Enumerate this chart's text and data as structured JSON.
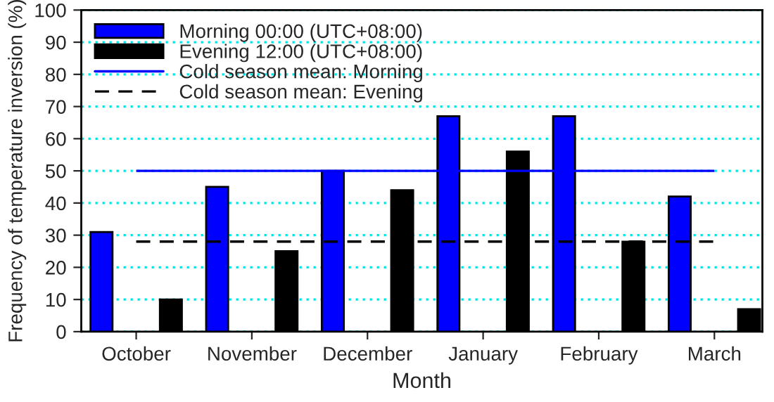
{
  "chart_data": {
    "type": "bar",
    "xlabel": "Month",
    "ylabel": "Frequency of temperature inversion (%)",
    "categories": [
      "October",
      "November",
      "December",
      "January",
      "February",
      "March"
    ],
    "series": [
      {
        "name": "Morning 00:00 (UTC+08:00)",
        "color": "#0000ff",
        "values": [
          31,
          45,
          50,
          67,
          67,
          42
        ]
      },
      {
        "name": "Evening 12:00 (UTC+08:00)",
        "color": "#000000",
        "values": [
          10,
          25,
          44,
          56,
          28,
          7
        ]
      }
    ],
    "ref_lines": [
      {
        "axis": "y",
        "value": 50,
        "label": "Cold season mean: Morning",
        "color": "#0000ff",
        "line_style": "solid"
      },
      {
        "axis": "y",
        "value": 28,
        "label": "Cold season mean: Evening",
        "color": "#000000",
        "line_style": "dashed"
      }
    ],
    "ylim": [
      0,
      100
    ],
    "yticks": [
      0,
      10,
      20,
      30,
      40,
      50,
      60,
      70,
      80,
      90,
      100
    ],
    "grid": "y",
    "legend": "top left"
  }
}
